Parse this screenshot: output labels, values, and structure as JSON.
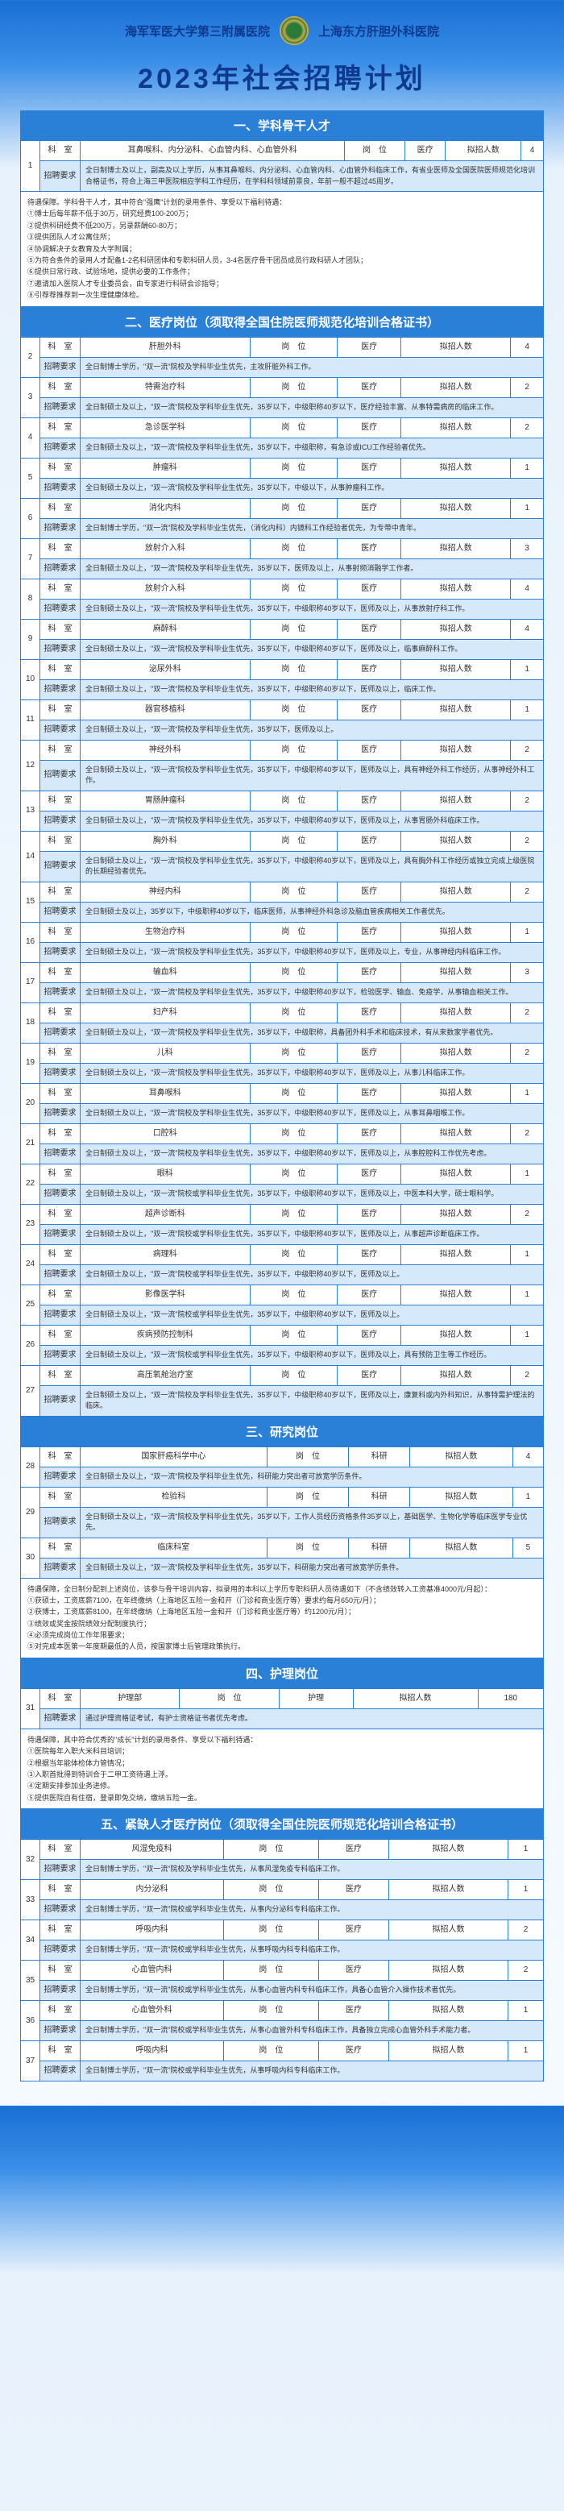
{
  "header": {
    "left": "海军军医大学第三附属医院",
    "right": "上海东方肝胆外科医院",
    "title": "2023年社会招聘计划"
  },
  "s1": {
    "title": "一、学科骨干人才",
    "cols": {
      "dept": "科　室",
      "pos": "岗　位",
      "type": "医疗",
      "cnt": "拟招人数"
    },
    "row": {
      "num": "1",
      "dept": "耳鼻喉科、内分泌科、心血管内科、心血管外科",
      "type": "医疗",
      "cnt": "4"
    },
    "req_label": "招聘要求",
    "req": "全日制博士及以上，副高及以上学历，从事耳鼻喉科、内分泌科、心血管内科、心血管外科临床工作，有省业医师及全国医院医师规范化培训合格证书，符合上海三甲医院相应学科工作经历，在学科科领域前景良，年前一般不超过45周岁。",
    "notes": "待遇保障。学科骨干人才，其中符合\"强鹰\"计划的录用条件、享受以下福利待遇：\n①博士后每年薪不低于30万，研究经费100-200万；\n②提供科研经费不低200万，另录薪酬60-80万；\n③提供团队人才公寓住所；\n④协调解决子女教育及大学附属；\n⑤为符合条件的录用人才配备1-2名科研团体和专职科研人员，3-4名医疗骨干团员成员行政科研人才团队；\n⑥提供日常行政、试验场地，提供必要的工作条件；\n⑦邀请加入医院人才专业委员会，由专家进行科研会诊指导；\n⑧引荐荐推荐到一次生理健康体检。"
  },
  "s2": {
    "title": "二、医疗岗位（须取得全国住院医师规范化培训合格证书）",
    "rows": [
      {
        "n": "2",
        "dept": "肝胆外科",
        "pos": "岗　位",
        "type": "医疗",
        "cnt_lbl": "拟招人数",
        "cnt": "4",
        "req": "全日制博士学历，\"双一流\"院校及学科毕业生优先，主攻肝脏外科工作。"
      },
      {
        "n": "3",
        "dept": "特需治疗科",
        "pos": "岗　位",
        "type": "医疗",
        "cnt_lbl": "拟招人数",
        "cnt": "2",
        "req": "全日制硕士及以上，\"双一流\"院校及学科毕业生优先，35岁以下，中级职称40岁以下，医疗经验丰富、从事特需病房的临床工作。"
      },
      {
        "n": "4",
        "dept": "急诊医学科",
        "pos": "岗　位",
        "type": "医疗",
        "cnt_lbl": "拟招人数",
        "cnt": "2",
        "req": "全日制硕士及以上，\"双一流\"院校及学科毕业生优先，35岁以下，中级职称，有急诊或ICU工作经验者优先。"
      },
      {
        "n": "5",
        "dept": "肿瘤科",
        "pos": "岗　位",
        "type": "医疗",
        "cnt_lbl": "拟招人数",
        "cnt": "1",
        "req": "全日制硕士及以上，\"双一流\"院校及学科毕业生优先，35岁以下，中级以下，从事肿瘤科工作。"
      },
      {
        "n": "6",
        "dept": "消化内科",
        "pos": "岗　位",
        "type": "医疗",
        "cnt_lbl": "拟招人数",
        "cnt": "1",
        "req": "全日制博士学历，\"双一流\"院校及学科毕业生优先，（消化内科）内镜科工作经验者优先，为专带中青年。"
      },
      {
        "n": "7",
        "dept": "放射介入科",
        "pos": "岗　位",
        "type": "医疗",
        "cnt_lbl": "拟招人数",
        "cnt": "3",
        "req": "全日制硕士及以上，\"双一流\"院校及学科毕业生优先，35岁以下，医师及以上，从事射频消融学工作者。"
      },
      {
        "n": "8",
        "dept": "放射介入科",
        "pos": "岗　位",
        "type": "医疗",
        "cnt_lbl": "拟招人数",
        "cnt": "4",
        "req": "全日制硕士及以上，\"双一流\"院校及学科毕业生优先，35岁以下，中级职称40岁以下，医师及以上，从事放射疗科工作。"
      },
      {
        "n": "9",
        "dept": "麻醉科",
        "pos": "岗　位",
        "type": "医疗",
        "cnt_lbl": "拟招人数",
        "cnt": "4",
        "req": "全日制硕士及以上，\"双一流\"院校及学科毕业生优先，35岁以下，中级职称40岁以下，医师及以上，临事麻醉科工作。"
      },
      {
        "n": "10",
        "dept": "泌尿外科",
        "pos": "岗　位",
        "type": "医疗",
        "cnt_lbl": "拟招人数",
        "cnt": "1",
        "req": "全日制硕士及以上，\"双一流\"院校及学科毕业生优先，35岁以下，中级职称40岁以下，医师及以上，临床工作。"
      },
      {
        "n": "11",
        "dept": "器官移植科",
        "pos": "岗　位",
        "type": "医疗",
        "cnt_lbl": "拟招人数",
        "cnt": "1",
        "req": "全日制硕士及以上，\"双一流\"院校及学科毕业生优先，35岁以下，医师及以上。"
      },
      {
        "n": "12",
        "dept": "神经外科",
        "pos": "岗　位",
        "type": "医疗",
        "cnt_lbl": "拟招人数",
        "cnt": "2",
        "req": "全日制硕士及以上，\"双一流\"院校及学科毕业生优先，35岁以下，中级职称40岁以下，医师及以上，具有神经外科工作经历，从事神经外科工作。"
      },
      {
        "n": "13",
        "dept": "胃肠肿瘤科",
        "pos": "岗　位",
        "type": "医疗",
        "cnt_lbl": "拟招人数",
        "cnt": "2",
        "req": "全日制硕士及以上，\"双一流\"院校及学科毕业生优先，35岁以下，中级职称40岁以下，医师及以上，从事胃肠外科临床工作。"
      },
      {
        "n": "14",
        "dept": "胸外科",
        "pos": "岗　位",
        "type": "医疗",
        "cnt_lbl": "拟招人数",
        "cnt": "2",
        "req": "全日制硕士及以上，\"双一流\"院校及学科毕业生优先，35岁以下，中级职称40岁以下，医师及以上，具有胸外科工作经历或独立完成上级医院的长期经验者优先。"
      },
      {
        "n": "15",
        "dept": "神经内科",
        "pos": "岗　位",
        "type": "医疗",
        "cnt_lbl": "拟招人数",
        "cnt": "2",
        "req": "全日制硕士及以上，35岁以下，中级职称40岁以下，临床医师，从事神经外科急诊及脑血管疾病相关工作者优先。"
      },
      {
        "n": "16",
        "dept": "生物治疗科",
        "pos": "岗　位",
        "type": "医疗",
        "cnt_lbl": "拟招人数",
        "cnt": "1",
        "req": "全日制硕士及以上，\"双一流\"院校及学科毕业生优先，35岁以下，中级职称40岁以下，医师及以上，专业，从事神经内科临床工作。"
      },
      {
        "n": "17",
        "dept": "输血科",
        "pos": "岗　位",
        "type": "医疗",
        "cnt_lbl": "拟招人数",
        "cnt": "3",
        "req": "全日制硕士及以上，\"双一流\"院校及学科毕业生优先，35岁以下，中级职称40岁以下，检验医学、输血、免疫学，从事输血相关工作。"
      },
      {
        "n": "18",
        "dept": "妇产科",
        "pos": "岗　位",
        "type": "医疗",
        "cnt_lbl": "拟招人数",
        "cnt": "2",
        "req": "全日制硕士及以上，\"双一流\"院校及学科毕业生优先，35岁以下，中级职称，具备团外科手术和临床技术，有从来数家学者优先。"
      },
      {
        "n": "19",
        "dept": "儿科",
        "pos": "岗　位",
        "type": "医疗",
        "cnt_lbl": "拟招人数",
        "cnt": "2",
        "req": "全日制硕士及以上，\"双一流\"院校及学科毕业生优先，35岁以下，中级职称40岁以下，医师及以上，从事儿科临床工作。"
      },
      {
        "n": "20",
        "dept": "耳鼻喉科",
        "pos": "岗　位",
        "type": "医疗",
        "cnt_lbl": "拟招人数",
        "cnt": "1",
        "req": "全日制硕士及以上，\"双一流\"院校及学科毕业生优先，35岁以下，中级职称40岁以下，医师及以上，从事耳鼻咽喉工作。"
      },
      {
        "n": "21",
        "dept": "口腔科",
        "pos": "岗　位",
        "type": "医疗",
        "cnt_lbl": "拟招人数",
        "cnt": "2",
        "req": "全日制硕士及以上，\"双一流\"院校及学科毕业生优先，35岁以下，中级职称40岁以下，医师及以上，从事腔腔科工作优先考虑。"
      },
      {
        "n": "22",
        "dept": "眼科",
        "pos": "岗　位",
        "type": "医疗",
        "cnt_lbl": "拟招人数",
        "cnt": "1",
        "req": "全日制硕士及以上，\"双一流\"院校或学科毕业生优先，35岁以下，中级职称40岁以下，医师及以上，中医本科大学，硕士眼科学。"
      },
      {
        "n": "23",
        "dept": "超声诊断科",
        "pos": "岗　位",
        "type": "医疗",
        "cnt_lbl": "拟招人数",
        "cnt": "2",
        "req": "全日制硕士及以上，\"双一流\"院校或学科毕业生优先，35岁以下，中级职称40岁以下，医师及以上，从事超声诊断临床工作。"
      },
      {
        "n": "24",
        "dept": "病理科",
        "pos": "岗　位",
        "type": "医疗",
        "cnt_lbl": "拟招人数",
        "cnt": "1",
        "req": "全日制硕士及以上，\"双一流\"院校或学科毕业生优先，35岁以下，中级职称40岁以下，医师及以上。"
      },
      {
        "n": "25",
        "dept": "影像医学科",
        "pos": "岗　位",
        "type": "医疗",
        "cnt_lbl": "拟招人数",
        "cnt": "1",
        "req": "全日制硕士及以上，\"双一流\"院校或学科毕业生优先，35岁以下，中级职称40岁以下，医师及以上。"
      },
      {
        "n": "26",
        "dept": "疾病预防控制科",
        "pos": "岗　位",
        "type": "医疗",
        "cnt_lbl": "拟招人数",
        "cnt": "1",
        "req": "全日制硕士及以上，\"双一流\"院校或学科毕业生优先，35岁以下，中级职称40岁以下，医师及以上，具有预防卫生等工作经历。"
      },
      {
        "n": "27",
        "dept": "高压氧舱治疗室",
        "pos": "岗　位",
        "type": "医疗",
        "cnt_lbl": "拟招人数",
        "cnt": "2",
        "req": "全日制硕士及以上，\"双一流\"院校及学科毕业生优先，35岁以下，中级职称40岁以下，医师及以上，康复科或内外科知识，从事特需护理法的临床。"
      }
    ],
    "req_label": "招聘要求"
  },
  "s3": {
    "title": "三、研究岗位",
    "rows": [
      {
        "n": "28",
        "dept": "国家肝癌科学中心",
        "pos": "岗　位",
        "type": "科研",
        "cnt_lbl": "拟招人数",
        "cnt": "4",
        "req": "全日制硕士及以上，\"双一流\"院校及学科毕业生优先，科研能力突出者可放宽学历条件。"
      },
      {
        "n": "29",
        "dept": "检验科",
        "pos": "岗　位",
        "type": "科研",
        "cnt_lbl": "拟招人数",
        "cnt": "1",
        "req": "全日制硕士及以上，\"双一流\"院校及学科毕业生优先，35岁以下，工作人员经历资格条件35岁以上，基础医学、生物化学等临床医学专业优先。"
      },
      {
        "n": "30",
        "dept": "临床科室",
        "pos": "岗　位",
        "type": "科研",
        "cnt_lbl": "拟招人数",
        "cnt": "5",
        "req": "全日制硕士及以上，\"双一流\"院校及学科毕业生优先，35岁以下，科研能力突出者可放宽学历条件。"
      }
    ],
    "req_label": "招聘要求",
    "notes": "待遇保障，全日制分配到上述岗位，该参与骨干培训内容，拟录用的本科以上学历专职科研人员待遇如下（不含绩效转入工资基准4000元/月起）：\n①获硕士，工资底薪7100，在年终缴纳（上海地区五险一金和开（门诊和商业医疗等）要求约每月650元/月）；\n②获博士，工资底薪8100，在年终缴纳（上海地区五险一金和开（门诊和商业医疗等）约1200元/月）；\n③绩效或奖金按院绩效分配制度执行；\n④必须完成岗位工作年限要求；\n⑤对完成本医第一年度期最低的人员，按国家博士后管理政策执行。"
  },
  "s4": {
    "title": "四、护理岗位",
    "row": {
      "n": "31",
      "dept_lbl": "科　室",
      "dept": "护理部",
      "pos_lbl": "岗　位",
      "type": "护理",
      "cnt_lbl": "拟招人数",
      "cnt": "180"
    },
    "req_label": "招聘要求",
    "req": "通过护理资格证考试，有护士资格证书者优先考虑。",
    "notes": "待遇保障，其中符合优秀的\"成长\"计划的录用条件、享受以下福利待遇：\n①医院每年入职大米科目培训；\n②根据当年能体检体力管情况；\n③入职首批得到特训合于二甲工资待遇上浮。\n④定期安排参加业务进修。\n⑤提供医院自有住宿，登录即免交纳，缴纳五险一金。"
  },
  "s5": {
    "title": "五、紧缺人才医疗岗位（须取得全国住院医师规范化培训合格证书）",
    "rows": [
      {
        "n": "32",
        "dept": "风湿免疫科",
        "pos": "岗　位",
        "type": "医疗",
        "cnt_lbl": "拟招人数",
        "cnt": "1",
        "req": "全日制博士学历，\"双一流\"院校及学科毕业生优先，从事风湿免疫专科临床工作。"
      },
      {
        "n": "33",
        "dept": "内分泌科",
        "pos": "岗　位",
        "type": "医疗",
        "cnt_lbl": "拟招人数",
        "cnt": "1",
        "req": "全日制博士学历，\"双一流\"院校或学科毕业生优先，从事内分泌科专科临床工作。"
      },
      {
        "n": "34",
        "dept": "呼吸内科",
        "pos": "岗　位",
        "type": "医疗",
        "cnt_lbl": "拟招人数",
        "cnt": "2",
        "req": "全日制博士学历，\"双一流\"院校或学科毕业生优先，从事呼吸内科专科临床工作。"
      },
      {
        "n": "35",
        "dept": "心血管内科",
        "pos": "岗　位",
        "type": "医疗",
        "cnt_lbl": "拟招人数",
        "cnt": "2",
        "req": "全日制博士学历，\"双一流\"院校或学科毕业生优先，从事心血管内科专科临床工作，具备心血管介入操作技术者优先。"
      },
      {
        "n": "36",
        "dept": "心血管外科",
        "pos": "岗　位",
        "type": "医疗",
        "cnt_lbl": "拟招人数",
        "cnt": "1",
        "req": "全日制博士学历，\"双一流\"院校或学科毕业生优先，从事心血管外科专科临床工作，具备独立完成心血管外科手术能力者。"
      },
      {
        "n": "37",
        "dept": "呼吸内科",
        "pos": "岗　位",
        "type": "医疗",
        "cnt_lbl": "拟招人数",
        "cnt": "1",
        "req": "全日制博士学历，\"双一流\"院校或学科毕业生优先，从事呼吸内科专科临床工作。"
      }
    ],
    "req_label": "招聘要求"
  }
}
